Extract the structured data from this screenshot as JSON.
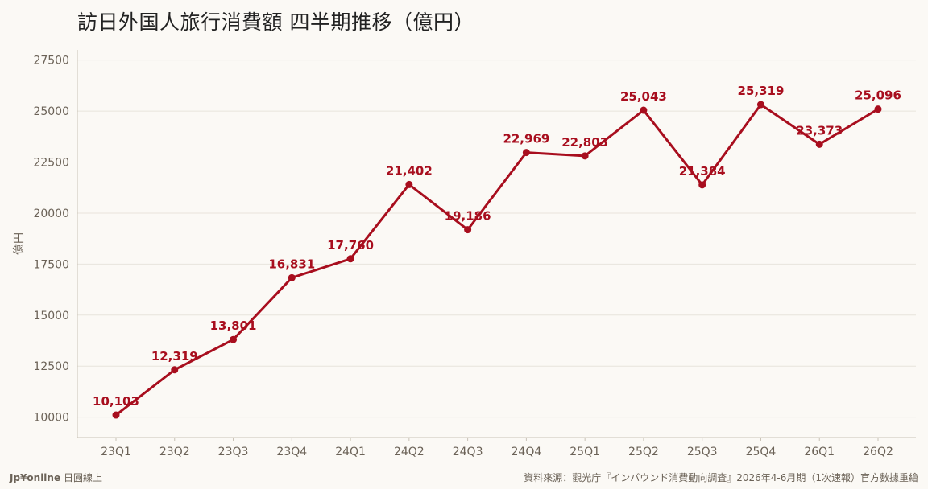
{
  "footer": {
    "brand": "Jp¥online",
    "brand_suffix": "日圓線上",
    "source": "資料來源：觀光庁『インバウンド消費動向調査』2026年4-6月期（1次速報）官方數據重繪"
  },
  "colors": {
    "line": "#a80e1e",
    "grid": "#e8e4dc",
    "axis_text": "#6b6257",
    "background": "#fbf9f5"
  },
  "chart_data": {
    "type": "line",
    "title": "訪日外国人旅行消費額 四半期推移（億円）",
    "xlabel": "",
    "ylabel": "億円",
    "ylim": [
      9000,
      28000
    ],
    "yticks": [
      10000,
      12500,
      15000,
      17500,
      20000,
      22500,
      25000,
      27500
    ],
    "grid": true,
    "categories": [
      "23Q1",
      "23Q2",
      "23Q3",
      "23Q4",
      "24Q1",
      "24Q2",
      "24Q3",
      "24Q4",
      "25Q1",
      "25Q2",
      "25Q3",
      "25Q4",
      "26Q1",
      "26Q2"
    ],
    "series": [
      {
        "values": [
          10103,
          12319,
          13801,
          16831,
          17760,
          21402,
          19186,
          22969,
          22803,
          25043,
          21384,
          25319,
          23373,
          25096
        ],
        "labels": [
          "10,103",
          "12,319",
          "13,801",
          "16,831",
          "17,760",
          "21,402",
          "19,186",
          "22,969",
          "22,803",
          "25,043",
          "21,384",
          "25,319",
          "23,373",
          "25,096"
        ]
      }
    ]
  }
}
